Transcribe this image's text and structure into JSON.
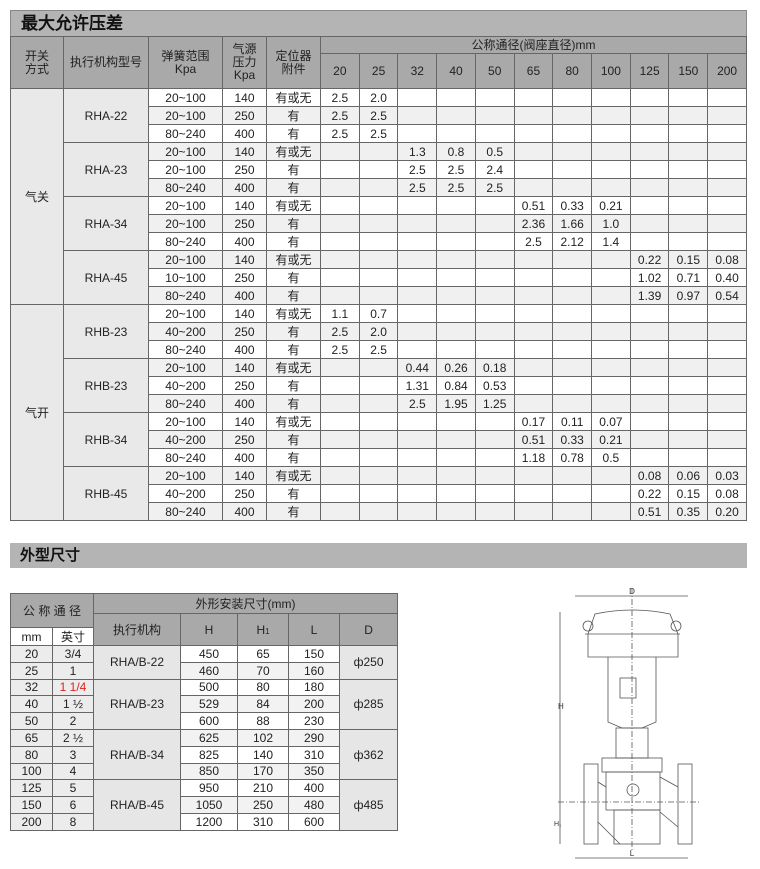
{
  "section1": {
    "title": "最大允许压差",
    "headers": {
      "mode": "开关\n方式",
      "actuator_model": "执行机构型号",
      "spring_range": "弹簧范围\nKpa",
      "supply_pressure": "气源\n压力\nKpa",
      "positioner": "定位器\n附件",
      "nominal": "公称通径(阀座直径)mm",
      "sizes": [
        "20",
        "25",
        "32",
        "40",
        "50",
        "65",
        "80",
        "100",
        "125",
        "150",
        "200"
      ]
    },
    "groups": [
      {
        "mode": "气关",
        "actuators": [
          {
            "model": "RHA-22",
            "rows": [
              {
                "spring": "20~100",
                "pressure": "140",
                "positioner": "有或无",
                "values": [
                  "2.5",
                  "2.0",
                  "",
                  "",
                  "",
                  "",
                  "",
                  "",
                  "",
                  "",
                  ""
                ]
              },
              {
                "spring": "20~100",
                "pressure": "250",
                "positioner": "有",
                "values": [
                  "2.5",
                  "2.5",
                  "",
                  "",
                  "",
                  "",
                  "",
                  "",
                  "",
                  "",
                  ""
                ]
              },
              {
                "spring": "80~240",
                "pressure": "400",
                "positioner": "有",
                "values": [
                  "2.5",
                  "2.5",
                  "",
                  "",
                  "",
                  "",
                  "",
                  "",
                  "",
                  "",
                  ""
                ]
              }
            ]
          },
          {
            "model": "RHA-23",
            "rows": [
              {
                "spring": "20~100",
                "pressure": "140",
                "positioner": "有或无",
                "values": [
                  "",
                  "",
                  "1.3",
                  "0.8",
                  "0.5",
                  "",
                  "",
                  "",
                  "",
                  "",
                  ""
                ]
              },
              {
                "spring": "20~100",
                "pressure": "250",
                "positioner": "有",
                "values": [
                  "",
                  "",
                  "2.5",
                  "2.5",
                  "2.4",
                  "",
                  "",
                  "",
                  "",
                  "",
                  ""
                ]
              },
              {
                "spring": "80~240",
                "pressure": "400",
                "positioner": "有",
                "values": [
                  "",
                  "",
                  "2.5",
                  "2.5",
                  "2.5",
                  "",
                  "",
                  "",
                  "",
                  "",
                  ""
                ]
              }
            ]
          },
          {
            "model": "RHA-34",
            "rows": [
              {
                "spring": "20~100",
                "pressure": "140",
                "positioner": "有或无",
                "values": [
                  "",
                  "",
                  "",
                  "",
                  "",
                  "0.51",
                  "0.33",
                  "0.21",
                  "",
                  "",
                  ""
                ]
              },
              {
                "spring": "20~100",
                "pressure": "250",
                "positioner": "有",
                "values": [
                  "",
                  "",
                  "",
                  "",
                  "",
                  "2.36",
                  "1.66",
                  "1.0",
                  "",
                  "",
                  ""
                ]
              },
              {
                "spring": "80~240",
                "pressure": "400",
                "positioner": "有",
                "values": [
                  "",
                  "",
                  "",
                  "",
                  "",
                  "2.5",
                  "2.12",
                  "1.4",
                  "",
                  "",
                  ""
                ]
              }
            ]
          },
          {
            "model": "RHA-45",
            "rows": [
              {
                "spring": "20~100",
                "pressure": "140",
                "positioner": "有或无",
                "values": [
                  "",
                  "",
                  "",
                  "",
                  "",
                  "",
                  "",
                  "",
                  "0.22",
                  "0.15",
                  "0.08"
                ]
              },
              {
                "spring": "10~100",
                "pressure": "250",
                "positioner": "有",
                "values": [
                  "",
                  "",
                  "",
                  "",
                  "",
                  "",
                  "",
                  "",
                  "1.02",
                  "0.71",
                  "0.40"
                ]
              },
              {
                "spring": "80~240",
                "pressure": "400",
                "positioner": "有",
                "values": [
                  "",
                  "",
                  "",
                  "",
                  "",
                  "",
                  "",
                  "",
                  "1.39",
                  "0.97",
                  "0.54"
                ]
              }
            ]
          }
        ]
      },
      {
        "mode": "气开",
        "actuators": [
          {
            "model": "RHB-23",
            "rows": [
              {
                "spring": "20~100",
                "pressure": "140",
                "positioner": "有或无",
                "values": [
                  "1.1",
                  "0.7",
                  "",
                  "",
                  "",
                  "",
                  "",
                  "",
                  "",
                  "",
                  ""
                ]
              },
              {
                "spring": "40~200",
                "pressure": "250",
                "positioner": "有",
                "values": [
                  "2.5",
                  "2.0",
                  "",
                  "",
                  "",
                  "",
                  "",
                  "",
                  "",
                  "",
                  ""
                ]
              },
              {
                "spring": "80~240",
                "pressure": "400",
                "positioner": "有",
                "values": [
                  "2.5",
                  "2.5",
                  "",
                  "",
                  "",
                  "",
                  "",
                  "",
                  "",
                  "",
                  ""
                ]
              }
            ]
          },
          {
            "model": "RHB-23",
            "rows": [
              {
                "spring": "20~100",
                "pressure": "140",
                "positioner": "有或无",
                "values": [
                  "",
                  "",
                  "0.44",
                  "0.26",
                  "0.18",
                  "",
                  "",
                  "",
                  "",
                  "",
                  ""
                ]
              },
              {
                "spring": "40~200",
                "pressure": "250",
                "positioner": "有",
                "values": [
                  "",
                  "",
                  "1.31",
                  "0.84",
                  "0.53",
                  "",
                  "",
                  "",
                  "",
                  "",
                  ""
                ]
              },
              {
                "spring": "80~240",
                "pressure": "400",
                "positioner": "有",
                "values": [
                  "",
                  "",
                  "2.5",
                  "1.95",
                  "1.25",
                  "",
                  "",
                  "",
                  "",
                  "",
                  ""
                ]
              }
            ]
          },
          {
            "model": "RHB-34",
            "rows": [
              {
                "spring": "20~100",
                "pressure": "140",
                "positioner": "有或无",
                "values": [
                  "",
                  "",
                  "",
                  "",
                  "",
                  "0.17",
                  "0.11",
                  "0.07",
                  "",
                  "",
                  ""
                ]
              },
              {
                "spring": "40~200",
                "pressure": "250",
                "positioner": "有",
                "values": [
                  "",
                  "",
                  "",
                  "",
                  "",
                  "0.51",
                  "0.33",
                  "0.21",
                  "",
                  "",
                  ""
                ]
              },
              {
                "spring": "80~240",
                "pressure": "400",
                "positioner": "有",
                "values": [
                  "",
                  "",
                  "",
                  "",
                  "",
                  "1.18",
                  "0.78",
                  "0.5",
                  "",
                  "",
                  ""
                ]
              }
            ]
          },
          {
            "model": "RHB-45",
            "rows": [
              {
                "spring": "20~100",
                "pressure": "140",
                "positioner": "有或无",
                "values": [
                  "",
                  "",
                  "",
                  "",
                  "",
                  "",
                  "",
                  "",
                  "0.08",
                  "0.06",
                  "0.03"
                ]
              },
              {
                "spring": "40~200",
                "pressure": "250",
                "positioner": "有",
                "values": [
                  "",
                  "",
                  "",
                  "",
                  "",
                  "",
                  "",
                  "",
                  "0.22",
                  "0.15",
                  "0.08"
                ]
              },
              {
                "spring": "80~240",
                "pressure": "400",
                "positioner": "有",
                "values": [
                  "",
                  "",
                  "",
                  "",
                  "",
                  "",
                  "",
                  "",
                  "0.51",
                  "0.35",
                  "0.20"
                ]
              }
            ]
          }
        ]
      }
    ]
  },
  "section2": {
    "title": "外型尺寸",
    "headers": {
      "nominal": "公 称 通 径",
      "dims": "外形安装尺寸(mm)",
      "mm": "mm",
      "inch": "英寸",
      "actuator": "执行机构",
      "H": "H",
      "H1": "H",
      "H1_sub": "1",
      "L": "L",
      "D": "D"
    },
    "highlight_color": "#e02020",
    "groups": [
      {
        "actuator": "RHA/B-22",
        "D": "ф250",
        "rows": [
          {
            "mm": "20",
            "inch": "3/4",
            "H": "450",
            "H1": "65",
            "L": "150"
          },
          {
            "mm": "25",
            "inch": "1",
            "H": "460",
            "H1": "70",
            "L": "160"
          }
        ]
      },
      {
        "actuator": "RHA/B-23",
        "D": "ф285",
        "rows": [
          {
            "mm": "32",
            "inch": "1 1/4",
            "H": "500",
            "H1": "80",
            "L": "180",
            "highlight": true
          },
          {
            "mm": "40",
            "inch": "1 ½",
            "H": "529",
            "H1": "84",
            "L": "200"
          },
          {
            "mm": "50",
            "inch": "2",
            "H": "600",
            "H1": "88",
            "L": "230"
          }
        ]
      },
      {
        "actuator": "RHA/B-34",
        "D": "ф362",
        "rows": [
          {
            "mm": "65",
            "inch": "2 ½",
            "H": "625",
            "H1": "102",
            "L": "290"
          },
          {
            "mm": "80",
            "inch": "3",
            "H": "825",
            "H1": "140",
            "L": "310"
          },
          {
            "mm": "100",
            "inch": "4",
            "H": "850",
            "H1": "170",
            "L": "350"
          }
        ]
      },
      {
        "actuator": "RHA/B-45",
        "D": "ф485",
        "rows": [
          {
            "mm": "125",
            "inch": "5",
            "H": "950",
            "H1": "210",
            "L": "400"
          },
          {
            "mm": "150",
            "inch": "6",
            "H": "1050",
            "H1": "250",
            "L": "480"
          },
          {
            "mm": "200",
            "inch": "8",
            "H": "1200",
            "H1": "310",
            "L": "600"
          }
        ]
      }
    ]
  },
  "drawing": {
    "label_D": "D",
    "label_H": "H",
    "label_H1": "H₁",
    "label_L": "L"
  }
}
